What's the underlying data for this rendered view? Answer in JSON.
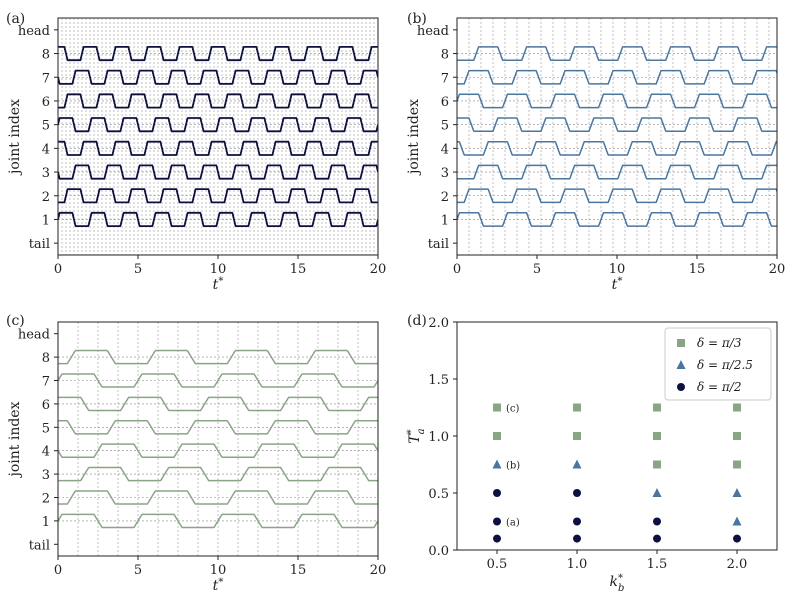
{
  "chart_data": [
    {
      "id": "a",
      "panel_label": "(a)",
      "type": "line",
      "xlabel": "t*",
      "ylabel": "joint index",
      "xlim": [
        0,
        20
      ],
      "xticks": [
        0,
        5,
        10,
        15,
        20
      ],
      "yticks": [
        "tail",
        "1",
        "2",
        "3",
        "4",
        "5",
        "6",
        "7",
        "8",
        "head"
      ],
      "color": "#0d1040",
      "period": 2.0,
      "amplitude": 0.28,
      "delta": 1.5708,
      "vertical_grid_step": 0.25,
      "joints": [
        1,
        2,
        3,
        4,
        5,
        6,
        7,
        8
      ]
    },
    {
      "id": "b",
      "panel_label": "(b)",
      "type": "line",
      "xlabel": "t*",
      "ylabel": "joint index",
      "xlim": [
        0,
        20
      ],
      "xticks": [
        0,
        5,
        10,
        15,
        20
      ],
      "yticks": [
        "tail",
        "1",
        "2",
        "3",
        "4",
        "5",
        "6",
        "7",
        "8",
        "head"
      ],
      "color": "#4a76a0",
      "period": 3.0,
      "amplitude": 0.28,
      "delta": 1.2566,
      "vertical_grid_step": 0.75,
      "joints": [
        1,
        2,
        3,
        4,
        5,
        6,
        7,
        8
      ]
    },
    {
      "id": "c",
      "panel_label": "(c)",
      "type": "line",
      "xlabel": "t*",
      "ylabel": "joint index",
      "xlim": [
        0,
        20
      ],
      "xticks": [
        0,
        5,
        10,
        15,
        20
      ],
      "yticks": [
        "tail",
        "1",
        "2",
        "3",
        "4",
        "5",
        "6",
        "7",
        "8",
        "head"
      ],
      "color": "#8aa585",
      "period": 5.0,
      "amplitude": 0.28,
      "delta": 1.0472,
      "vertical_grid_step": 1.25,
      "joints": [
        1,
        2,
        3,
        4,
        5,
        6,
        7,
        8
      ]
    },
    {
      "id": "d",
      "panel_label": "(d)",
      "type": "scatter",
      "xlabel": "k_b*",
      "ylabel": "T_a*",
      "xlim": [
        0.25,
        2.25
      ],
      "ylim": [
        0.0,
        2.0
      ],
      "xticks": [
        "0.5",
        "1.0",
        "1.5",
        "2.0"
      ],
      "yticks": [
        "0.0",
        "0.5",
        "1.0",
        "1.5",
        "2.0"
      ],
      "legend_position": "top-right",
      "series": [
        {
          "name": "δ = π/3",
          "marker": "square",
          "color": "#8aa585",
          "points": [
            [
              0.5,
              1.0
            ],
            [
              0.5,
              1.25
            ],
            [
              1.0,
              1.0
            ],
            [
              1.0,
              1.25
            ],
            [
              1.5,
              0.75
            ],
            [
              1.5,
              1.0
            ],
            [
              1.5,
              1.25
            ],
            [
              2.0,
              0.75
            ],
            [
              2.0,
              1.0
            ],
            [
              2.0,
              1.25
            ]
          ]
        },
        {
          "name": "δ = π/2.5",
          "marker": "triangle",
          "color": "#4a76a0",
          "points": [
            [
              0.5,
              0.75
            ],
            [
              1.0,
              0.75
            ],
            [
              1.5,
              0.5
            ],
            [
              2.0,
              0.5
            ],
            [
              2.0,
              0.25
            ]
          ]
        },
        {
          "name": "δ = π/2",
          "marker": "circle",
          "color": "#0d1040",
          "points": [
            [
              0.5,
              0.1
            ],
            [
              0.5,
              0.25
            ],
            [
              0.5,
              0.5
            ],
            [
              1.0,
              0.1
            ],
            [
              1.0,
              0.25
            ],
            [
              1.0,
              0.5
            ],
            [
              1.5,
              0.1
            ],
            [
              1.5,
              0.25
            ],
            [
              2.0,
              0.1
            ]
          ]
        }
      ],
      "annotations": [
        {
          "text": "(a)",
          "x": 0.5,
          "y": 0.25
        },
        {
          "text": "(b)",
          "x": 0.5,
          "y": 0.75
        },
        {
          "text": "(c)",
          "x": 0.5,
          "y": 1.25
        }
      ]
    }
  ]
}
